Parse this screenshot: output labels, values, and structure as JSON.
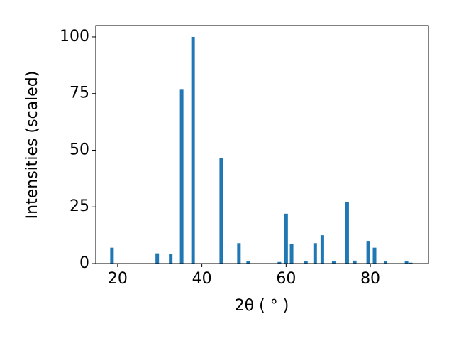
{
  "chart_data": {
    "type": "bar",
    "xlabel": "2θ ( ° )",
    "ylabel": "Intensities (scaled)",
    "x": [
      18.65,
      29.4,
      32.6,
      35.2,
      37.9,
      44.6,
      48.8,
      51.0,
      58.4,
      60.0,
      61.3,
      64.7,
      66.9,
      68.6,
      71.3,
      74.5,
      76.3,
      79.5,
      81.0,
      83.6,
      88.6,
      89.6
    ],
    "values": [
      7,
      4.5,
      4.2,
      77,
      100,
      46.5,
      9,
      1,
      0.7,
      22,
      8.5,
      1,
      9,
      12.5,
      1,
      27,
      1.3,
      10,
      7,
      1,
      1.2,
      0.4
    ],
    "color": "#1f77b4",
    "xlim": [
      14.8,
      93.8
    ],
    "xticks": [
      20,
      40,
      60,
      80
    ],
    "ylim": [
      0,
      105
    ],
    "yticks": [
      0,
      25,
      50,
      75,
      100
    ]
  }
}
